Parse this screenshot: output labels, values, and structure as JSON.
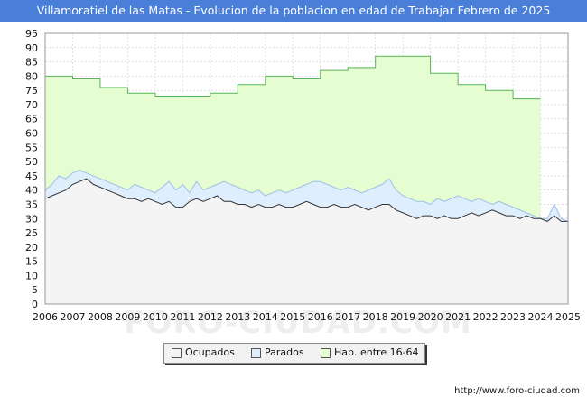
{
  "title": "Villamoratiel de las Matas - Evolucion de la poblacion en edad de Trabajar Febrero de 2025",
  "url": "http://www.foro-ciudad.com",
  "watermark": "FORO-CIUDAD.COM",
  "colors": {
    "title_bg": "#4a7fd9",
    "hab_fill": "#e5fdd0",
    "hab_line": "#55b555",
    "parados_fill": "#deeefc",
    "parados_line": "#9dbfe6",
    "ocupados_fill": "#f4f4f4",
    "ocupados_line": "#333333",
    "grid": "#cccccc"
  },
  "legend": [
    {
      "label": "Ocupados",
      "color": "#f4f4f4"
    },
    {
      "label": "Parados",
      "color": "#deeefc"
    },
    {
      "label": "Hab. entre 16-64",
      "color": "#e5fdd0"
    }
  ],
  "chart_data": {
    "type": "area",
    "title": "Villamoratiel de las Matas - Evolucion de la poblacion en edad de Trabajar Febrero de 2025",
    "xlabel": "",
    "ylabel": "",
    "xlim": [
      2006,
      2025
    ],
    "ylim": [
      0,
      95
    ],
    "yticks": [
      0,
      5,
      10,
      15,
      20,
      25,
      30,
      35,
      40,
      45,
      50,
      55,
      60,
      65,
      70,
      75,
      80,
      85,
      90,
      95
    ],
    "xticks": [
      "2006",
      "2007",
      "2008",
      "2009",
      "2010",
      "2011",
      "2012",
      "2013",
      "2014",
      "2015",
      "2016",
      "2017",
      "2018",
      "2019",
      "2020",
      "2021",
      "2022",
      "2023",
      "2024",
      "2025"
    ],
    "grid": true,
    "legend_position": "bottom-center",
    "series": [
      {
        "name": "Hab. entre 16-64",
        "x": [
          2006,
          2007,
          2007,
          2008,
          2008,
          2009,
          2009,
          2010,
          2010,
          2011,
          2011,
          2012,
          2012,
          2013,
          2013,
          2014,
          2014,
          2015,
          2015,
          2016,
          2016,
          2017,
          2017,
          2018,
          2018,
          2019,
          2019,
          2020,
          2020,
          2021,
          2021,
          2022,
          2022,
          2023,
          2023,
          2024
        ],
        "values": [
          80,
          80,
          79,
          79,
          76,
          76,
          74,
          74,
          73,
          73,
          73,
          73,
          74,
          74,
          77,
          77,
          80,
          80,
          79,
          79,
          82,
          82,
          83,
          83,
          87,
          87,
          87,
          87,
          81,
          81,
          77,
          77,
          75,
          75,
          72,
          72
        ]
      },
      {
        "name": "Parados",
        "x": [
          2006,
          2006.25,
          2006.5,
          2006.75,
          2007,
          2007.25,
          2007.5,
          2007.75,
          2008,
          2008.25,
          2008.5,
          2008.75,
          2009,
          2009.25,
          2009.5,
          2009.75,
          2010,
          2010.25,
          2010.5,
          2010.75,
          2011,
          2011.25,
          2011.5,
          2011.75,
          2012,
          2012.25,
          2012.5,
          2012.75,
          2013,
          2013.25,
          2013.5,
          2013.75,
          2014,
          2014.25,
          2014.5,
          2014.75,
          2015,
          2015.25,
          2015.5,
          2015.75,
          2016,
          2016.25,
          2016.5,
          2016.75,
          2017,
          2017.25,
          2017.5,
          2017.75,
          2018,
          2018.25,
          2018.5,
          2018.75,
          2019,
          2019.25,
          2019.5,
          2019.75,
          2020,
          2020.25,
          2020.5,
          2020.75,
          2021,
          2021.25,
          2021.5,
          2021.75,
          2022,
          2022.25,
          2022.5,
          2022.75,
          2023,
          2023.25,
          2023.5,
          2023.75,
          2024,
          2024.25,
          2024.5,
          2024.75,
          2025
        ],
        "values": [
          40,
          42,
          45,
          44,
          46,
          47,
          46,
          45,
          44,
          43,
          42,
          41,
          40,
          42,
          41,
          40,
          39,
          41,
          43,
          40,
          42,
          39,
          43,
          40,
          41,
          42,
          43,
          42,
          41,
          40,
          39,
          40,
          38,
          39,
          40,
          39,
          40,
          41,
          42,
          43,
          43,
          42,
          41,
          40,
          41,
          40,
          39,
          40,
          41,
          42,
          44,
          40,
          38,
          37,
          36,
          36,
          35,
          37,
          36,
          37,
          38,
          37,
          36,
          37,
          36,
          35,
          36,
          35,
          34,
          33,
          32,
          31,
          30,
          30,
          35,
          30,
          29
        ]
      },
      {
        "name": "Ocupados",
        "x": [
          2006,
          2006.25,
          2006.5,
          2006.75,
          2007,
          2007.25,
          2007.5,
          2007.75,
          2008,
          2008.25,
          2008.5,
          2008.75,
          2009,
          2009.25,
          2009.5,
          2009.75,
          2010,
          2010.25,
          2010.5,
          2010.75,
          2011,
          2011.25,
          2011.5,
          2011.75,
          2012,
          2012.25,
          2012.5,
          2012.75,
          2013,
          2013.25,
          2013.5,
          2013.75,
          2014,
          2014.25,
          2014.5,
          2014.75,
          2015,
          2015.25,
          2015.5,
          2015.75,
          2016,
          2016.25,
          2016.5,
          2016.75,
          2017,
          2017.25,
          2017.5,
          2017.75,
          2018,
          2018.25,
          2018.5,
          2018.75,
          2019,
          2019.25,
          2019.5,
          2019.75,
          2020,
          2020.25,
          2020.5,
          2020.75,
          2021,
          2021.25,
          2021.5,
          2021.75,
          2022,
          2022.25,
          2022.5,
          2022.75,
          2023,
          2023.25,
          2023.5,
          2023.75,
          2024,
          2024.25,
          2024.5,
          2024.75,
          2025
        ],
        "values": [
          37,
          38,
          39,
          40,
          42,
          43,
          44,
          42,
          41,
          40,
          39,
          38,
          37,
          37,
          36,
          37,
          36,
          35,
          36,
          34,
          34,
          36,
          37,
          36,
          37,
          38,
          36,
          36,
          35,
          35,
          34,
          35,
          34,
          34,
          35,
          34,
          34,
          35,
          36,
          35,
          34,
          34,
          35,
          34,
          34,
          35,
          34,
          33,
          34,
          35,
          35,
          33,
          32,
          31,
          30,
          31,
          31,
          30,
          31,
          30,
          30,
          31,
          32,
          31,
          32,
          33,
          32,
          31,
          31,
          30,
          31,
          30,
          30,
          29,
          31,
          29,
          29
        ]
      }
    ]
  }
}
